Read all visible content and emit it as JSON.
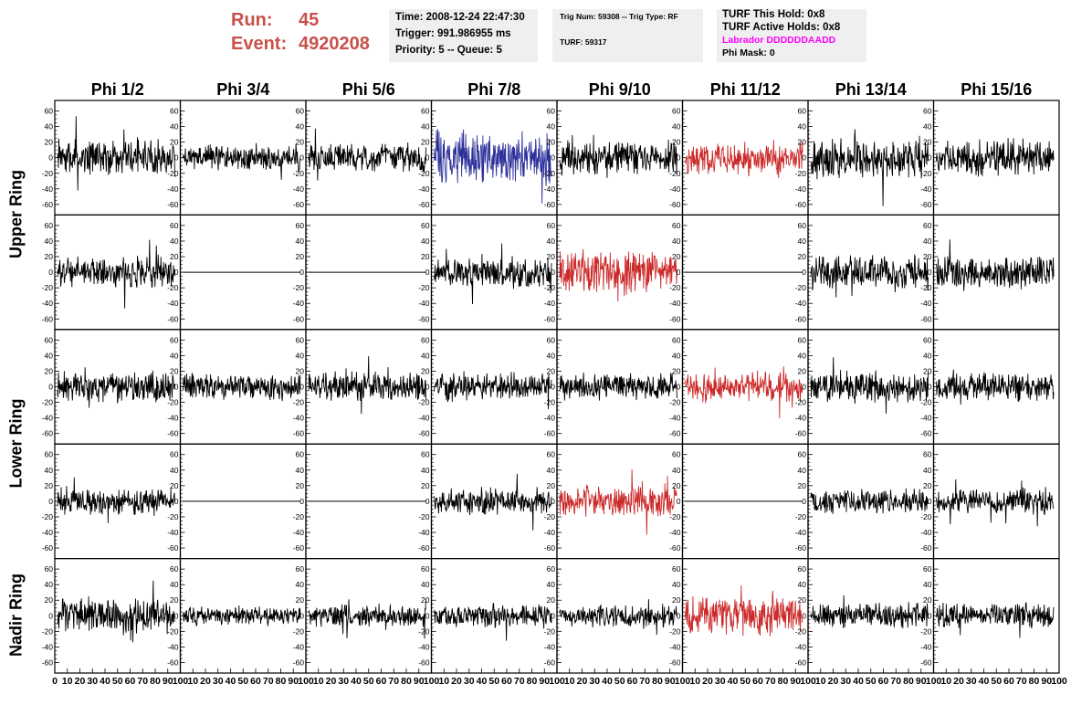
{
  "header": {
    "run_label": "Run:",
    "run_value": "45",
    "event_label": "Event:",
    "event_value": "4920208",
    "time_line": "Time: 2008-12-24 22:47:30",
    "trigger_line": "Trigger: 991.986955 ms",
    "priority_line": "Priority: 5 -- Queue: 5",
    "trig_line": "Trig Num: 59308 -- Trig Type: RF",
    "turf_line": "TURF: 59317",
    "turf_hold_line": "TURF This Hold: 0x8",
    "turf_active_line": "TURF Active Holds: 0x8",
    "labrador_line": "Labrador DDDDDDAADD",
    "phi_mask_line": "Phi Mask: 0"
  },
  "colors": {
    "normal": "#000000",
    "blue": "#2b2f9a",
    "red": "#cc2a2a",
    "run_text": "#c8504b",
    "labrador": "#ff00ff"
  },
  "chart_data": {
    "type": "line",
    "title": "",
    "columns": [
      "Phi 1/2",
      "Phi 3/4",
      "Phi 5/6",
      "Phi 7/8",
      "Phi 9/10",
      "Phi 11/12",
      "Phi 13/14",
      "Phi 15/16"
    ],
    "rows": [
      "Upper Ring",
      "",
      "Lower Ring",
      "",
      "Nadir Ring"
    ],
    "row_labels": [
      {
        "text": "Upper Ring",
        "span": [
          0,
          1
        ]
      },
      {
        "text": "Lower Ring",
        "span": [
          2,
          3
        ]
      },
      {
        "text": "Nadir Ring",
        "span": [
          4,
          4
        ]
      }
    ],
    "xlim": [
      0,
      100
    ],
    "ylim": [
      -70,
      70
    ],
    "x_ticks": [
      "0",
      "10",
      "20",
      "30",
      "40",
      "50",
      "60",
      "70",
      "80",
      "90",
      "100"
    ],
    "y_ticks": [
      "60",
      "40",
      "20",
      "0",
      "-20",
      "-40",
      "-60"
    ],
    "panels": [
      [
        "normal",
        "normal",
        "normal",
        "blue",
        "normal",
        "red",
        "normal",
        "normal"
      ],
      [
        "normal",
        "flat",
        "flat",
        "normal",
        "red",
        "flat",
        "normal",
        "normal"
      ],
      [
        "normal",
        "normal",
        "normal",
        "normal",
        "normal",
        "red",
        "normal",
        "normal"
      ],
      [
        "normal",
        "flat",
        "flat",
        "normal",
        "red",
        "flat",
        "normal",
        "normal"
      ],
      [
        "normal",
        "normal",
        "normal",
        "normal",
        "normal",
        "red",
        "normal",
        "normal"
      ]
    ],
    "amplitudes": [
      [
        16,
        11,
        13,
        24,
        15,
        14,
        18,
        16
      ],
      [
        14,
        0,
        0,
        13,
        20,
        0,
        15,
        15
      ],
      [
        14,
        11,
        13,
        13,
        12,
        13,
        14,
        12
      ],
      [
        12,
        0,
        0,
        12,
        15,
        0,
        11,
        12
      ],
      [
        16,
        9,
        10,
        10,
        10,
        18,
        12,
        11
      ]
    ]
  }
}
